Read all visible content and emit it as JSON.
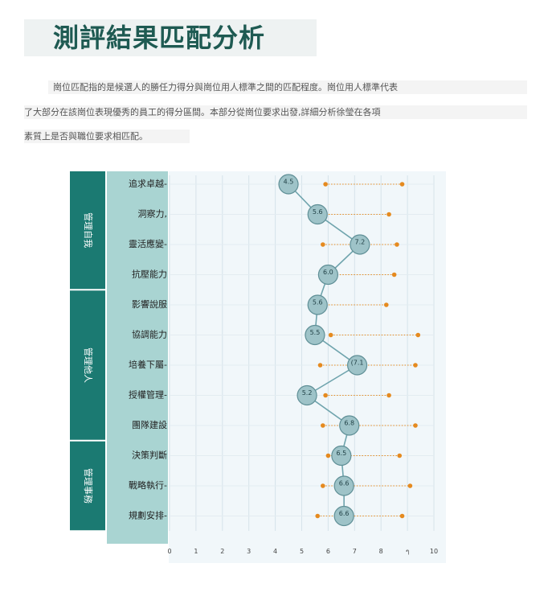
{
  "title": "測評結果匹配分析",
  "intro": [
    "崗位匹配指的是候選人的勝任力得分與崗位用人標準之間的匹配程度。崗位用人標準代表",
    "了大部分在該崗位表現優秀的員工的得分區間。本部分從崗位要求出發,詳細分析徐瑩在各項",
    "素質上是否與職位要求相匹配。"
  ],
  "chart_data": {
    "type": "scatter",
    "groups": [
      {
        "name": "管理自我",
        "members": [
          "追求卓越",
          "洞察力",
          "靈活應變",
          "抗壓能力"
        ]
      },
      {
        "name": "管理他人",
        "members": [
          "影響說服",
          "協調能力",
          "培養下屬",
          "授權管理",
          "團隊建設"
        ]
      },
      {
        "name": "管理事務",
        "members": [
          "決策判斷",
          "戰略執行",
          "規劃安排"
        ]
      }
    ],
    "categories": [
      "追求卓越-",
      "洞察力,",
      "靈活應變-",
      "抗壓能力",
      "影響說服",
      "協調能力",
      "培養下屬-",
      "授權管理-",
      "團隊建設",
      "決策判斷",
      "戰略執行-",
      "規劃安排-"
    ],
    "scores": [
      4.5,
      5.6,
      7.2,
      6.0,
      5.6,
      5.5,
      7.1,
      5.2,
      6.8,
      6.5,
      6.6,
      6.6
    ],
    "score_labels": [
      "4.5",
      "5.6",
      "7.2",
      "6.0",
      "5.6",
      "5.5",
      "(7.1",
      "5.2",
      "6.8",
      "6.5",
      "6.6",
      "6.6"
    ],
    "standard_range": [
      [
        5.9,
        8.8
      ],
      [
        5.8,
        8.3
      ],
      [
        5.8,
        8.6
      ],
      [
        5.8,
        8.5
      ],
      [
        5.8,
        8.2
      ],
      [
        6.1,
        9.4
      ],
      [
        5.7,
        9.3
      ],
      [
        5.9,
        8.3
      ],
      [
        5.8,
        9.3
      ],
      [
        6.0,
        8.7
      ],
      [
        5.8,
        9.1
      ],
      [
        5.6,
        8.8
      ]
    ],
    "x_ticks": [
      "0",
      "1",
      "2",
      "3",
      "4",
      "5",
      "6",
      "7",
      "8",
      "ๆ",
      "10"
    ],
    "xlim": [
      0,
      10
    ],
    "grid": true,
    "colors": {
      "group_bg": "#1b7a72",
      "label_bg": "#a9d4d2",
      "plot_bg": "#f1f7fa",
      "node_fill": "#9ec3c8",
      "node_stroke": "#5f8f96",
      "line": "#6fa4ad",
      "range": "#e58a1f"
    }
  }
}
